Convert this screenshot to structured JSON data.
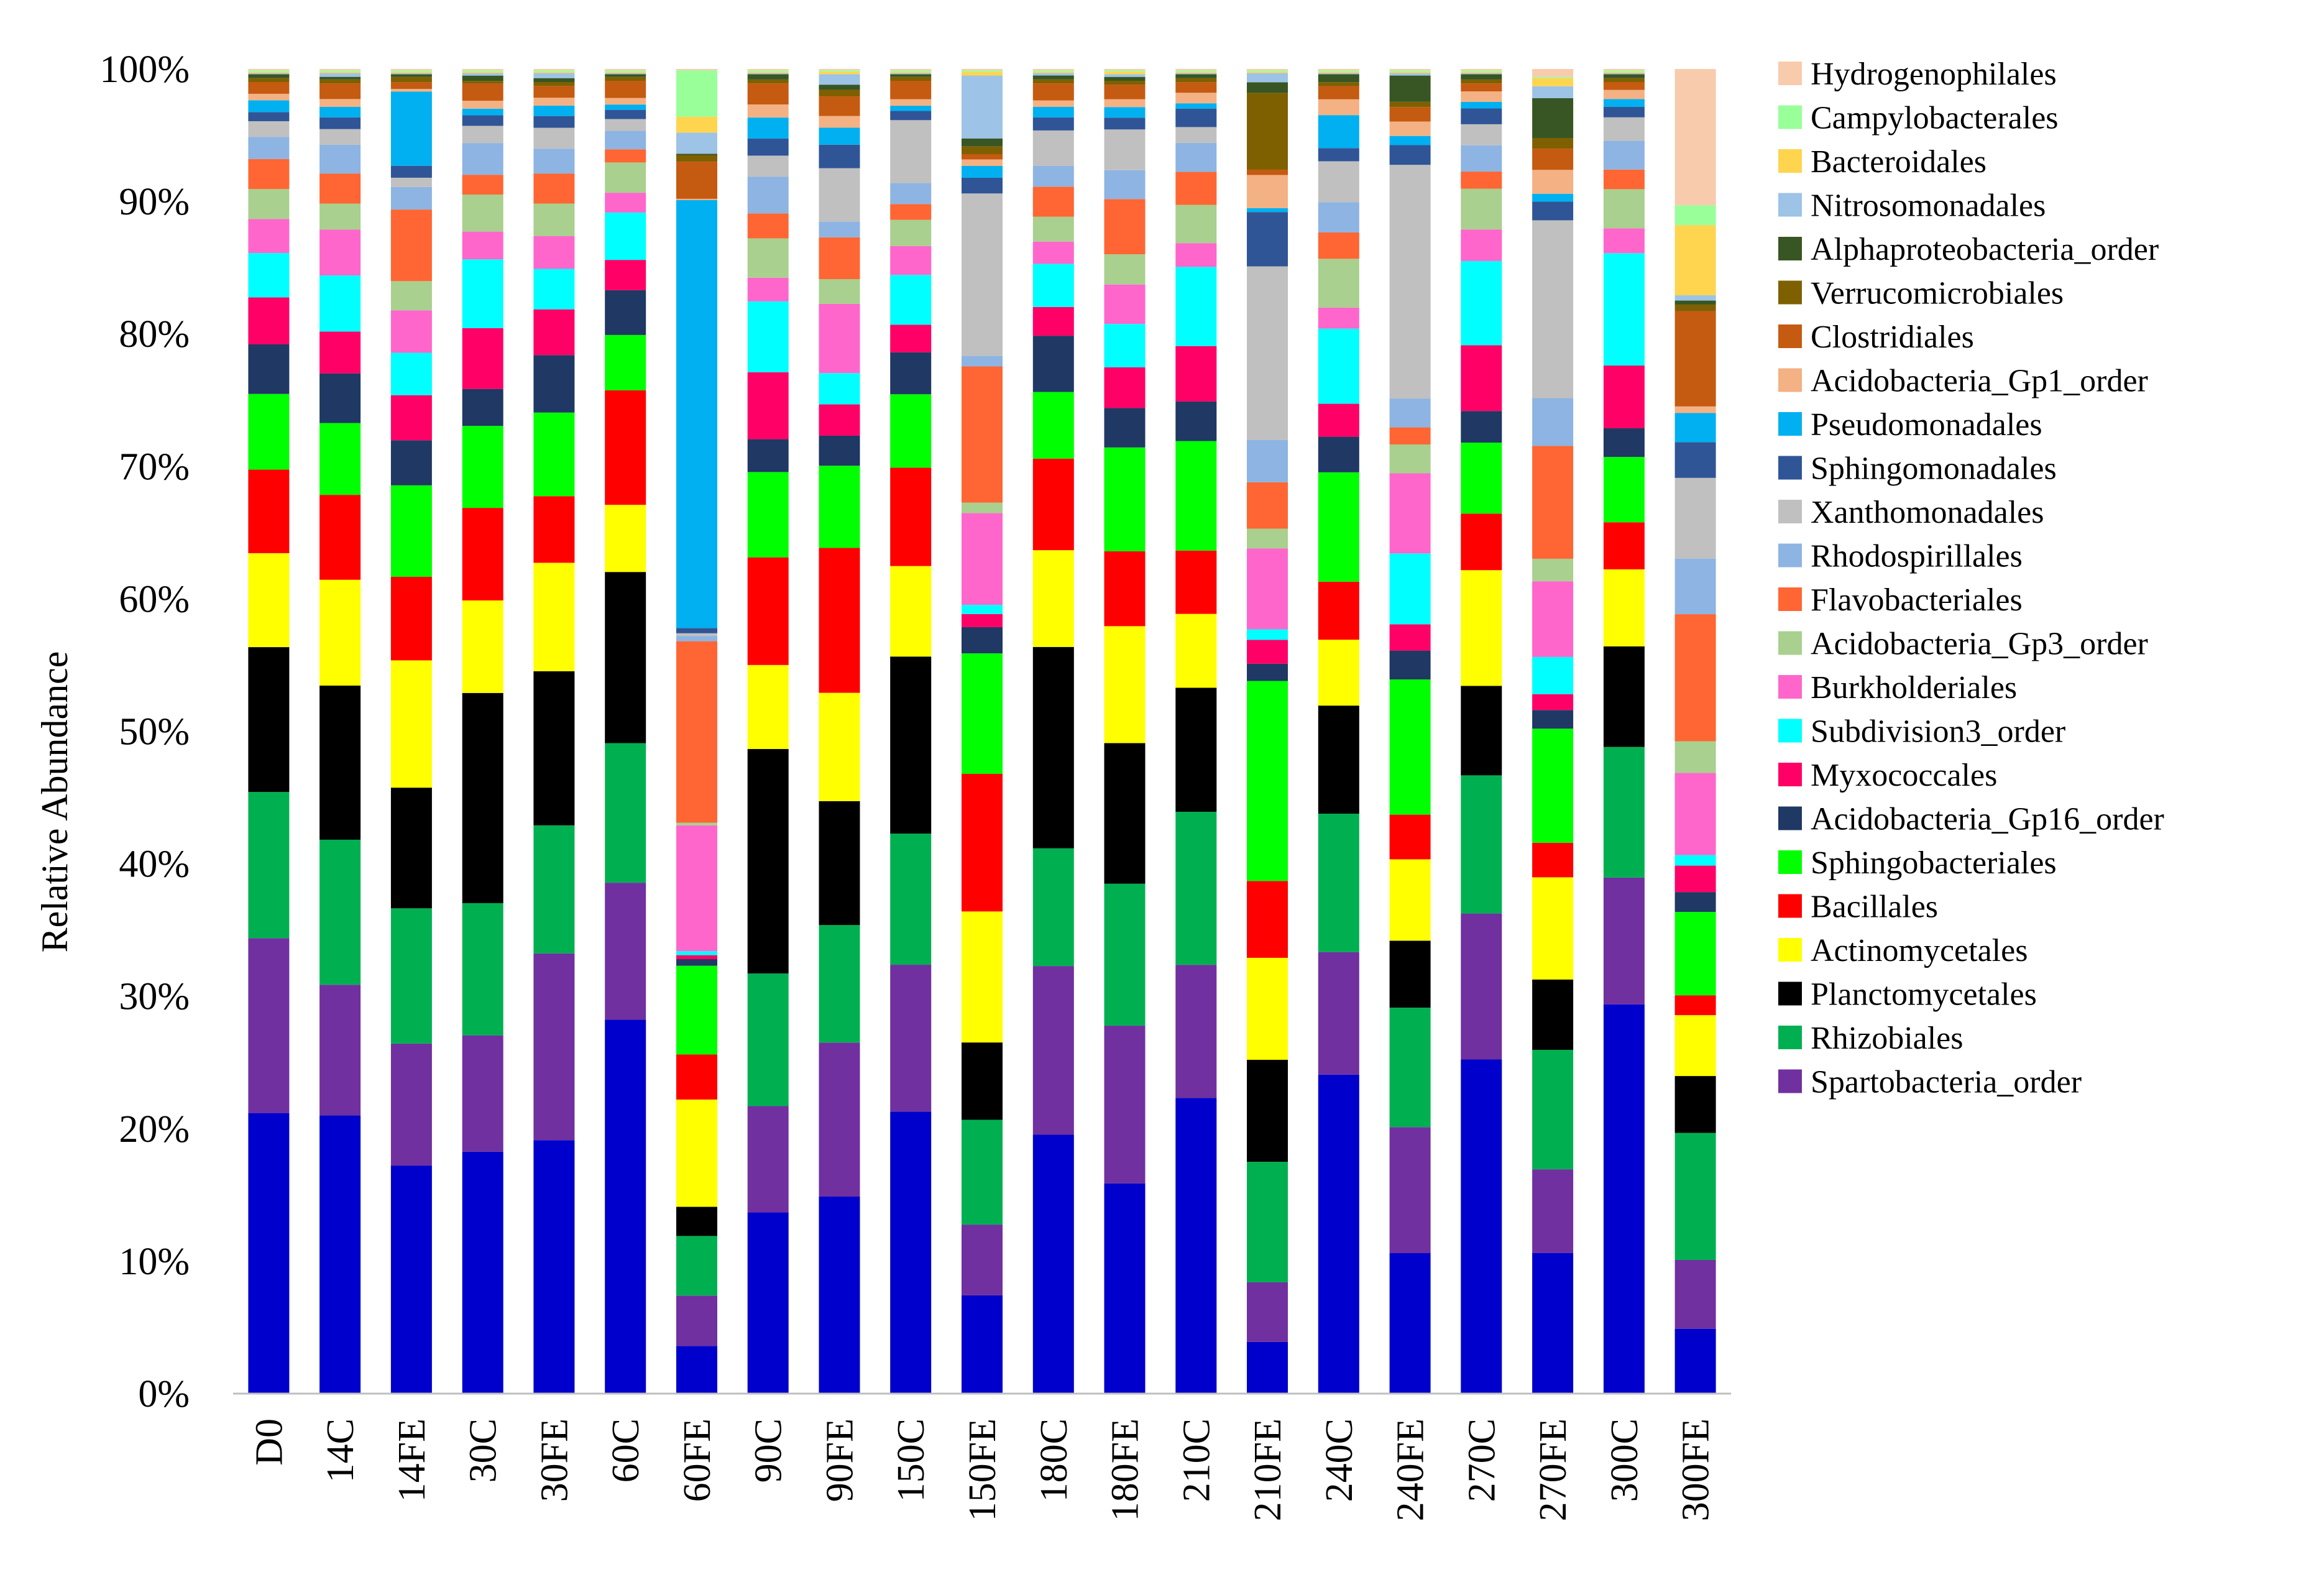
{
  "chart_data": {
    "type": "bar",
    "stacked": true,
    "percent_stacked": true,
    "title": "",
    "xlabel": "",
    "ylabel": "Relative Abundance",
    "ylim": [
      0,
      100
    ],
    "yticks": [
      "0%",
      "10%",
      "20%",
      "30%",
      "40%",
      "50%",
      "60%",
      "70%",
      "80%",
      "90%",
      "100%"
    ],
    "legend_position": "right",
    "grid": false,
    "categories": [
      "D0",
      "14C",
      "14FE",
      "30C",
      "30FE",
      "60C",
      "60FE",
      "90C",
      "90FE",
      "150C",
      "150FE",
      "180C",
      "180FE",
      "210C",
      "210FE",
      "240C",
      "240FE",
      "270C",
      "270FE",
      "300C",
      "300FE"
    ],
    "series": [
      {
        "color": "#0000CC",
        "values": [
          21.5,
          21.3,
          17.2,
          18.3,
          19.4,
          28.4,
          3.6,
          13.8,
          15.1,
          21.5,
          7.5,
          19.8,
          16.0,
          22.4,
          3.9,
          24.2,
          10.7,
          25.4,
          10.6,
          29.8,
          4.9
        ]
      },
      {
        "name": "Spartobacteria_order",
        "color": "#7030A0",
        "values": [
          13.4,
          10.0,
          9.2,
          8.8,
          14.3,
          10.4,
          3.8,
          8.1,
          11.8,
          11.2,
          5.4,
          12.9,
          12.0,
          10.1,
          4.5,
          9.3,
          9.6,
          11.1,
          6.3,
          9.7,
          5.2
        ]
      },
      {
        "name": "Rhizobiales",
        "color": "#00B050",
        "values": [
          11.2,
          11.1,
          10.2,
          10.0,
          9.8,
          10.6,
          4.5,
          10.1,
          9.0,
          10.0,
          8.0,
          9.0,
          10.8,
          11.6,
          9.1,
          10.5,
          9.1,
          10.5,
          9.0,
          10.0,
          9.6
        ]
      },
      {
        "name": "Planctomycetales",
        "color": "#000000",
        "values": [
          11.1,
          11.8,
          9.1,
          15.9,
          11.8,
          13.0,
          2.2,
          17.1,
          9.5,
          13.5,
          5.9,
          15.4,
          10.7,
          9.4,
          7.7,
          8.2,
          5.1,
          6.8,
          5.3,
          7.7,
          4.3
        ]
      },
      {
        "name": "Actinomycetales",
        "color": "#FFFF00",
        "values": [
          7.2,
          8.1,
          9.6,
          7.0,
          8.3,
          5.1,
          8.1,
          6.4,
          8.3,
          6.9,
          10.0,
          7.4,
          8.9,
          5.6,
          7.7,
          5.0,
          6.2,
          8.8,
          7.7,
          5.9,
          4.6
        ]
      },
      {
        "name": "Bacillales",
        "color": "#FF0000",
        "values": [
          6.4,
          6.5,
          6.3,
          7.0,
          5.1,
          8.7,
          3.4,
          8.2,
          11.1,
          7.5,
          10.5,
          7.0,
          5.7,
          4.8,
          5.8,
          4.4,
          3.4,
          4.3,
          2.6,
          3.6,
          1.5
        ]
      },
      {
        "name": "Sphingobacteriales",
        "color": "#00FF00",
        "values": [
          5.8,
          5.5,
          6.9,
          6.2,
          6.4,
          4.2,
          6.7,
          6.5,
          6.3,
          5.6,
          9.2,
          5.1,
          7.9,
          8.3,
          15.1,
          8.3,
          10.3,
          5.4,
          8.6,
          5.0,
          6.3
        ]
      },
      {
        "name": "Acidobacteria_Gp16_order",
        "color": "#1F3864",
        "values": [
          3.8,
          3.8,
          3.4,
          2.8,
          4.4,
          3.4,
          0.5,
          2.5,
          2.3,
          3.2,
          2.0,
          4.3,
          3.0,
          3.0,
          1.3,
          2.7,
          2.2,
          2.4,
          1.4,
          2.2,
          1.5
        ]
      },
      {
        "name": "Myxococcales",
        "color": "#FF0066",
        "values": [
          3.6,
          3.2,
          3.4,
          4.6,
          3.5,
          2.3,
          0.3,
          5.1,
          2.4,
          2.1,
          1.0,
          2.2,
          3.1,
          4.2,
          1.8,
          2.5,
          2.0,
          5.0,
          1.2,
          4.8,
          2.0
        ]
      },
      {
        "name": "Subdivision3_order",
        "color": "#00FFFF",
        "values": [
          3.4,
          4.3,
          3.2,
          5.2,
          3.1,
          3.6,
          0.3,
          5.4,
          2.4,
          3.8,
          0.7,
          3.3,
          3.3,
          6.0,
          0.8,
          5.7,
          5.4,
          6.4,
          2.8,
          8.6,
          0.8
        ]
      },
      {
        "name": "Burkholderiales",
        "color": "#FF66CC",
        "values": [
          2.6,
          3.5,
          3.2,
          2.1,
          2.5,
          1.5,
          9.5,
          1.8,
          5.3,
          2.2,
          7.0,
          1.7,
          3.0,
          1.8,
          6.1,
          1.6,
          6.1,
          2.4,
          5.7,
          1.9,
          6.2
        ]
      },
      {
        "name": "Acidobacteria_Gp3_order",
        "color": "#A9D08E",
        "values": [
          2.3,
          2.0,
          2.2,
          2.8,
          2.5,
          2.3,
          0.2,
          3.0,
          1.9,
          2.0,
          0.8,
          1.9,
          2.3,
          2.9,
          1.5,
          3.7,
          2.2,
          3.1,
          1.7,
          3.0,
          2.4
        ]
      },
      {
        "name": "Flavobacteriales",
        "color": "#FF6633",
        "values": [
          2.3,
          2.3,
          5.4,
          1.5,
          2.3,
          1.0,
          13.7,
          1.9,
          3.2,
          1.2,
          10.4,
          2.3,
          4.2,
          2.5,
          3.5,
          2.0,
          1.3,
          1.3,
          8.5,
          1.5,
          9.6
        ]
      },
      {
        "name": "Rhodospirillales",
        "color": "#8DB4E2",
        "values": [
          1.7,
          2.2,
          1.7,
          2.4,
          1.9,
          1.4,
          0.4,
          2.8,
          1.2,
          1.6,
          0.8,
          1.6,
          2.2,
          2.2,
          3.2,
          2.3,
          2.2,
          2.0,
          3.6,
          2.2,
          4.2
        ]
      },
      {
        "name": "Xanthomonadales",
        "color": "#C0C0C0",
        "values": [
          1.2,
          1.2,
          0.7,
          1.3,
          1.6,
          0.9,
          0.2,
          1.6,
          4.1,
          4.8,
          12.4,
          2.7,
          3.1,
          1.2,
          13.1,
          3.1,
          17.8,
          1.6,
          13.4,
          1.8,
          6.1
        ]
      },
      {
        "name": "Sphingomonadales",
        "color": "#2F5597",
        "values": [
          0.7,
          0.9,
          0.9,
          0.8,
          0.9,
          0.7,
          0.4,
          1.3,
          1.8,
          0.7,
          1.2,
          1.0,
          0.9,
          1.4,
          4.1,
          1.0,
          1.5,
          1.2,
          1.4,
          0.8,
          2.7
        ]
      },
      {
        "name": "Pseudomonadales",
        "color": "#00B0F0",
        "values": [
          0.9,
          0.8,
          5.6,
          0.5,
          0.8,
          0.4,
          32.3,
          1.6,
          1.3,
          0.4,
          0.9,
          0.8,
          0.8,
          0.4,
          0.3,
          2.5,
          0.7,
          0.5,
          0.6,
          0.6,
          2.2
        ]
      },
      {
        "name": "Acidobacteria_Gp1_order",
        "color": "#F4B183",
        "values": [
          0.5,
          0.6,
          0.2,
          0.6,
          0.6,
          0.5,
          0.1,
          1.0,
          0.9,
          0.5,
          0.5,
          0.5,
          0.6,
          0.8,
          2.5,
          1.2,
          1.1,
          0.8,
          1.8,
          0.7,
          0.5
        ]
      },
      {
        "name": "Clostridiales",
        "color": "#C55A11",
        "values": [
          0.9,
          1.2,
          0.5,
          1.3,
          0.9,
          1.3,
          2.8,
          1.6,
          1.5,
          1.4,
          0.4,
          1.3,
          1.1,
          0.8,
          0.4,
          1.0,
          1.1,
          0.6,
          1.6,
          0.6,
          7.2
        ]
      },
      {
        "name": "Verrucomicrobiales",
        "color": "#7F6000",
        "values": [
          0.3,
          0.3,
          0.4,
          0.2,
          0.3,
          0.3,
          0.5,
          0.3,
          0.5,
          0.3,
          0.6,
          0.3,
          0.3,
          0.3,
          5.8,
          0.3,
          0.4,
          0.3,
          0.8,
          0.3,
          0.5
        ]
      },
      {
        "name": "Alphaproteobacteria_order",
        "color": "#375623",
        "values": [
          0.3,
          0.2,
          0.2,
          0.4,
          0.3,
          0.2,
          0.1,
          0.4,
          0.4,
          0.2,
          0.6,
          0.3,
          0.3,
          0.3,
          0.8,
          0.6,
          2.0,
          0.4,
          3.0,
          0.3,
          0.3
        ]
      },
      {
        "name": "Nitrosomonadales",
        "color": "#9DC3E6",
        "values": [
          0.1,
          0.3,
          0.1,
          0.2,
          0.4,
          0.1,
          1.6,
          0.1,
          0.8,
          0.1,
          4.8,
          0.2,
          0.2,
          0.1,
          0.7,
          0.1,
          0.2,
          0.1,
          0.9,
          0.1,
          0.4
        ]
      },
      {
        "name": "Bacteroidales",
        "color": "#FFD54F",
        "values": [
          0.1,
          0.1,
          0.1,
          0.1,
          0.1,
          0.1,
          1.2,
          0.1,
          0.2,
          0.1,
          0.3,
          0.1,
          0.2,
          0.1,
          0.1,
          0.1,
          0.1,
          0.1,
          0.6,
          0.1,
          5.3
        ]
      },
      {
        "name": "Campylobacterales",
        "color": "#99FF99",
        "values": [
          0.1,
          0.1,
          0.1,
          0.1,
          0.1,
          0.1,
          3.5,
          0.1,
          0.1,
          0.1,
          0.1,
          0.1,
          0.1,
          0.1,
          0.1,
          0.1,
          0.1,
          0.1,
          0.1,
          0.1,
          1.5
        ]
      },
      {
        "name": "Hydrogenophilales",
        "color": "#F8CBAD",
        "values": [
          0.1,
          0.1,
          0.1,
          0.1,
          0.1,
          0.1,
          0.1,
          0.1,
          0.1,
          0.1,
          0.1,
          0.1,
          0.1,
          0.1,
          0.1,
          0.1,
          0.1,
          0.1,
          0.6,
          0.1,
          10.3
        ]
      }
    ]
  }
}
